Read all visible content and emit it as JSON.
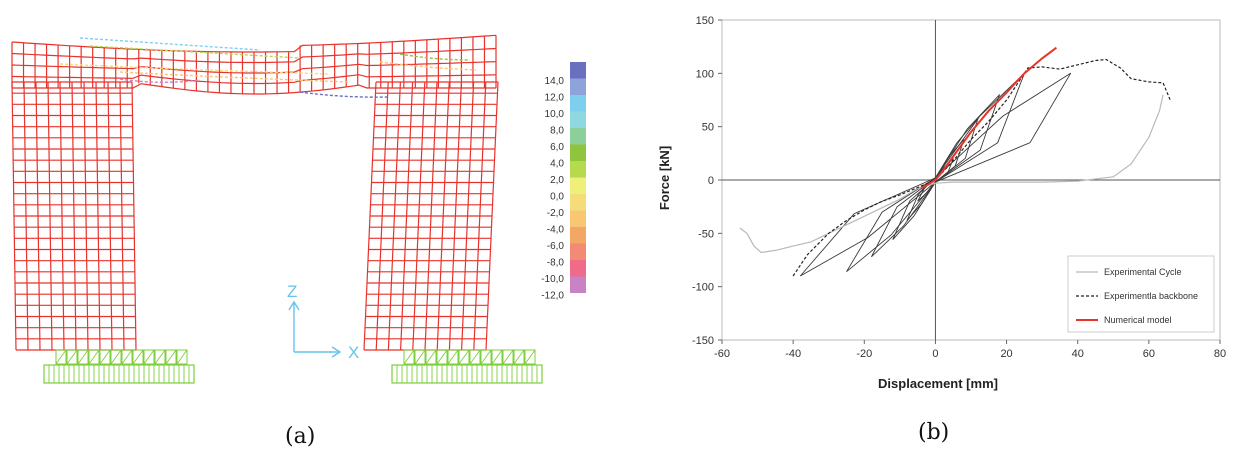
{
  "captions": {
    "a": "(a)",
    "b": "(b)"
  },
  "fe_model": {
    "mesh_color": "#e8322c",
    "support_color": "#7ccf3a",
    "axis_color": "#66c4e8",
    "axis_z": "Z",
    "axis_x": "X",
    "legend_labels": [
      "14,0",
      "12,0",
      "10,0",
      "8,0",
      "6,0",
      "4,0",
      "2,0",
      "0,0",
      "-2,0",
      "-4,0",
      "-6,0",
      "-8,0",
      "-10,0",
      "-12,0"
    ],
    "legend_colors": [
      "#6a6fbe",
      "#8ea3da",
      "#7ecfee",
      "#8fd8e2",
      "#8dcf9a",
      "#8ec43e",
      "#b6d94e",
      "#eef07a",
      "#f5dc7a",
      "#f7c773",
      "#f4a665",
      "#f28a74",
      "#f06a8a",
      "#c783c4"
    ]
  },
  "chart_data": {
    "type": "line",
    "xlabel": "Displacement [mm]",
    "ylabel": "Force [kN]",
    "xlim": [
      -60,
      80
    ],
    "ylim": [
      -150,
      150
    ],
    "xticks": [
      -60,
      -40,
      -20,
      0,
      20,
      40,
      60,
      80
    ],
    "yticks": [
      -150,
      -100,
      -50,
      0,
      50,
      100,
      150
    ],
    "grid": false,
    "legend_position": "bottom-right",
    "series": [
      {
        "name": "Experimental Cycle",
        "color": "#b9b9b9",
        "style": "solid",
        "x": [
          -55,
          -53,
          -51,
          -49,
          -45,
          -40,
          -35,
          -30,
          -25,
          -20,
          -15,
          -10,
          -5,
          0,
          5,
          10,
          20,
          30,
          40,
          50,
          55,
          60,
          63,
          64
        ],
        "y": [
          -45,
          -50,
          -62,
          -68,
          -66,
          -62,
          -58,
          -50,
          -42,
          -34,
          -26,
          -18,
          -8,
          -3,
          -2,
          -2,
          -2,
          -2,
          -1,
          3,
          15,
          40,
          65,
          80
        ]
      },
      {
        "name": "Experimentla backbone",
        "color": "#222222",
        "style": "dashed",
        "x": [
          -40,
          -36,
          -30,
          -25,
          -20,
          -15,
          -10,
          -5,
          0,
          5,
          10,
          15,
          20,
          24,
          26,
          30,
          35,
          40,
          45,
          48,
          52,
          55,
          60,
          64,
          66
        ],
        "y": [
          -90,
          -70,
          -50,
          -38,
          -28,
          -20,
          -14,
          -7,
          0,
          18,
          38,
          55,
          75,
          95,
          105,
          106,
          104,
          108,
          112,
          113,
          105,
          95,
          92,
          91,
          75
        ]
      },
      {
        "name": "Numerical model",
        "color": "#e8332a",
        "style": "solid",
        "x": [
          -4,
          -2,
          0,
          2,
          5,
          10,
          15,
          20,
          25,
          30,
          34
        ],
        "y": [
          -8,
          -4,
          0,
          8,
          22,
          45,
          65,
          82,
          100,
          114,
          124
        ]
      }
    ],
    "hysteresis_loops": [
      {
        "amp": 5,
        "top": 20,
        "bot": -20
      },
      {
        "amp": 8,
        "top": 38,
        "bot": -38
      },
      {
        "amp": 12,
        "top": 58,
        "bot": -56
      },
      {
        "amp": 18,
        "top": 80,
        "bot": -72
      },
      {
        "amp": 25,
        "top": 100,
        "bot": -86
      },
      {
        "amp": 38,
        "top": 100,
        "bot": -90
      }
    ]
  }
}
